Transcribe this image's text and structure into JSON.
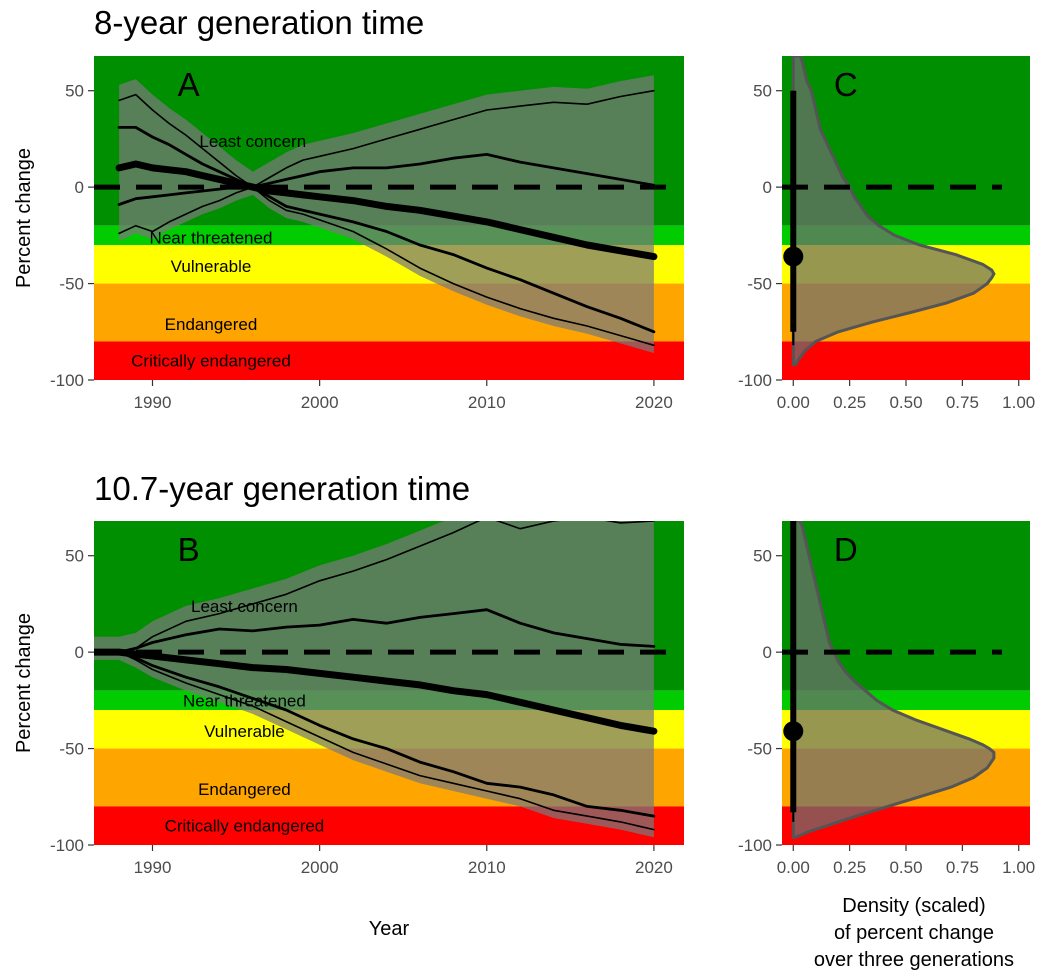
{
  "colors": {
    "least_concern": "#008f00",
    "near_threatened": "#00cc00",
    "vulnerable": "#ffff00",
    "endangered": "#ffa500",
    "critically_endangered": "#ff0000",
    "trajectories": "#7a7a7a",
    "density_fill": "#6f6f6f"
  },
  "chart_data": [
    {
      "panel": "A",
      "type": "line",
      "title": "8-year generation time",
      "xlabel": "",
      "ylabel": "Percent change",
      "xlim": [
        1986.5,
        2021.8
      ],
      "ylim": [
        -100,
        68
      ],
      "x_ticks": [
        1990,
        2000,
        2010,
        2020
      ],
      "y_ticks": [
        -100,
        -50,
        0,
        50
      ],
      "bands": [
        {
          "label": "Least concern",
          "from": -20,
          "to": 68,
          "color_key": "least_concern",
          "label_x": 1996,
          "label_y": 24
        },
        {
          "label": "Near threatened",
          "from": -30,
          "to": -20,
          "color_key": "near_threatened",
          "label_x": 1993.5,
          "label_y": -26
        },
        {
          "label": "Vulnerable",
          "from": -50,
          "to": -30,
          "color_key": "vulnerable",
          "label_x": 1993.5,
          "label_y": -41
        },
        {
          "label": "Endangered",
          "from": -80,
          "to": -50,
          "color_key": "endangered",
          "label_x": 1993.5,
          "label_y": -71
        },
        {
          "label": "Critically endangered",
          "from": -100,
          "to": -80,
          "color_key": "critically_endangered",
          "label_x": 1993.5,
          "label_y": -90
        }
      ],
      "reference_line": 0,
      "series": [
        {
          "role": "upper-outer",
          "width": 1.6,
          "x": [
            1988,
            1989,
            1990,
            1991,
            1992,
            1993,
            1994,
            1995,
            1996,
            1997,
            1998,
            1999,
            2000,
            2002,
            2004,
            2006,
            2008,
            2010,
            2012,
            2014,
            2016,
            2018,
            2020
          ],
          "y": [
            45,
            48,
            40,
            33,
            27,
            20,
            13,
            6,
            0,
            5,
            10,
            14,
            16,
            20,
            25,
            30,
            35,
            40,
            42,
            44,
            43,
            47,
            50
          ]
        },
        {
          "role": "upper-inner",
          "width": 2.8,
          "x": [
            1988,
            1989,
            1990,
            1991,
            1992,
            1993,
            1994,
            1995,
            1996,
            1997,
            1998,
            1999,
            2000,
            2002,
            2004,
            2006,
            2008,
            2010,
            2012,
            2014,
            2016,
            2018,
            2020
          ],
          "y": [
            31,
            31,
            26,
            22,
            17,
            12,
            8,
            4,
            0,
            2,
            4,
            6,
            8,
            10,
            10,
            12,
            15,
            17,
            13,
            10,
            7,
            4,
            1
          ]
        },
        {
          "role": "median",
          "width": 7,
          "x": [
            1988,
            1989,
            1990,
            1991,
            1992,
            1993,
            1994,
            1995,
            1996,
            1997,
            1998,
            1999,
            2000,
            2002,
            2004,
            2006,
            2008,
            2010,
            2012,
            2014,
            2016,
            2018,
            2020
          ],
          "y": [
            10,
            12,
            10,
            9,
            8,
            6,
            4,
            2,
            0,
            -2,
            -3,
            -4,
            -5,
            -7,
            -10,
            -12,
            -15,
            -18,
            -22,
            -26,
            -30,
            -33,
            -36
          ]
        },
        {
          "role": "lower-inner",
          "width": 2.8,
          "x": [
            1988,
            1989,
            1990,
            1991,
            1992,
            1993,
            1994,
            1995,
            1996,
            1997,
            1998,
            1999,
            2000,
            2002,
            2004,
            2006,
            2008,
            2010,
            2012,
            2014,
            2016,
            2018,
            2020
          ],
          "y": [
            -9,
            -6,
            -5,
            -4,
            -3,
            -2,
            -1,
            0,
            0,
            -5,
            -10,
            -12,
            -14,
            -18,
            -23,
            -30,
            -35,
            -42,
            -48,
            -55,
            -62,
            -68,
            -75
          ]
        },
        {
          "role": "lower-outer",
          "width": 1.6,
          "x": [
            1988,
            1989,
            1990,
            1991,
            1992,
            1993,
            1994,
            1995,
            1996,
            1997,
            1998,
            1999,
            2000,
            2002,
            2004,
            2006,
            2008,
            2010,
            2012,
            2014,
            2016,
            2018,
            2020
          ],
          "y": [
            -24,
            -20,
            -23,
            -18,
            -14,
            -10,
            -7,
            -3,
            0,
            -7,
            -12,
            -14,
            -17,
            -23,
            -32,
            -42,
            -50,
            -57,
            -63,
            -68,
            -72,
            -77,
            -82
          ]
        }
      ]
    },
    {
      "panel": "C",
      "type": "area",
      "title": "",
      "xlabel": "",
      "ylabel": "",
      "xlim": [
        -0.05,
        1.05
      ],
      "ylim": [
        -100,
        68
      ],
      "x_ticks": [
        0.0,
        0.25,
        0.5,
        0.75,
        1.0
      ],
      "x_tick_labels": [
        "0.00",
        "0.25",
        "0.50",
        "0.75",
        "1.00"
      ],
      "y_ticks": [
        -100,
        -50,
        0,
        50
      ],
      "reference_line": 0,
      "density": {
        "y": [
          -92,
          -90,
          -85,
          -80,
          -75,
          -70,
          -65,
          -60,
          -55,
          -50,
          -47,
          -45,
          -43,
          -40,
          -35,
          -30,
          -25,
          -20,
          -15,
          -10,
          -5,
          0,
          5,
          10,
          15,
          20,
          25,
          30,
          35,
          40,
          45,
          50,
          55,
          60,
          65,
          68
        ],
        "x": [
          0.01,
          0.02,
          0.05,
          0.1,
          0.2,
          0.35,
          0.52,
          0.68,
          0.8,
          0.86,
          0.88,
          0.89,
          0.88,
          0.84,
          0.72,
          0.56,
          0.45,
          0.38,
          0.33,
          0.3,
          0.27,
          0.25,
          0.22,
          0.2,
          0.18,
          0.16,
          0.14,
          0.12,
          0.11,
          0.1,
          0.09,
          0.08,
          0.06,
          0.05,
          0.04,
          0.03
        ]
      },
      "point": {
        "x": 0.0,
        "y": -36
      },
      "interval_thick": [
        -75,
        50
      ],
      "interval_thin": [
        -82,
        50
      ],
      "label": "C"
    },
    {
      "panel": "B",
      "type": "line",
      "title": "10.7-year generation time",
      "xlabel": "Year",
      "ylabel": "Percent change",
      "xlim": [
        1986.5,
        2021.8
      ],
      "ylim": [
        -100,
        68
      ],
      "x_ticks": [
        1990,
        2000,
        2010,
        2020
      ],
      "y_ticks": [
        -100,
        -50,
        0,
        50
      ],
      "bands": [
        {
          "label": "Least concern",
          "from": -20,
          "to": 68,
          "color_key": "least_concern",
          "label_x": 1995.5,
          "label_y": 24
        },
        {
          "label": "Near threatened",
          "from": -30,
          "to": -20,
          "color_key": "near_threatened",
          "label_x": 1995.5,
          "label_y": -25
        },
        {
          "label": "Vulnerable",
          "from": -50,
          "to": -30,
          "color_key": "vulnerable",
          "label_x": 1995.5,
          "label_y": -41
        },
        {
          "label": "Endangered",
          "from": -80,
          "to": -50,
          "color_key": "endangered",
          "label_x": 1995.5,
          "label_y": -71
        },
        {
          "label": "Critically endangered",
          "from": -100,
          "to": -80,
          "color_key": "critically_endangered",
          "label_x": 1995.5,
          "label_y": -90
        }
      ],
      "reference_line": 0,
      "series": [
        {
          "role": "upper-outer",
          "width": 1.6,
          "x": [
            1986.5,
            1988,
            1989,
            1990,
            1992,
            1994,
            1996,
            1998,
            2000,
            2002,
            2004,
            2006,
            2008,
            2010,
            2012,
            2014,
            2016,
            2018,
            2020
          ],
          "y": [
            0,
            0,
            2,
            8,
            16,
            20,
            25,
            30,
            37,
            42,
            48,
            55,
            62,
            70,
            64,
            68,
            70,
            67,
            68
          ]
        },
        {
          "role": "upper-inner",
          "width": 2.8,
          "x": [
            1986.5,
            1988,
            1989,
            1990,
            1992,
            1994,
            1996,
            1998,
            2000,
            2002,
            2004,
            2006,
            2008,
            2010,
            2012,
            2014,
            2016,
            2018,
            2020
          ],
          "y": [
            0,
            0,
            2,
            5,
            9,
            12,
            11,
            13,
            14,
            17,
            15,
            18,
            20,
            22,
            15,
            10,
            7,
            4,
            3
          ]
        },
        {
          "role": "median",
          "width": 7,
          "x": [
            1986.5,
            1988,
            1989,
            1990,
            1992,
            1994,
            1996,
            1998,
            2000,
            2002,
            2004,
            2006,
            2008,
            2010,
            2012,
            2014,
            2016,
            2018,
            2020
          ],
          "y": [
            0,
            0,
            -1,
            -2,
            -4,
            -6,
            -8,
            -9,
            -11,
            -13,
            -15,
            -17,
            -20,
            -22,
            -26,
            -30,
            -34,
            -38,
            -41
          ]
        },
        {
          "role": "lower-inner",
          "width": 2.8,
          "x": [
            1986.5,
            1988,
            1989,
            1990,
            1992,
            1994,
            1996,
            1998,
            2000,
            2002,
            2004,
            2006,
            2008,
            2010,
            2012,
            2014,
            2016,
            2018,
            2020
          ],
          "y": [
            0,
            0,
            -3,
            -7,
            -13,
            -18,
            -24,
            -30,
            -38,
            -45,
            -50,
            -57,
            -62,
            -68,
            -70,
            -74,
            -80,
            -82,
            -85
          ]
        },
        {
          "role": "lower-outer",
          "width": 1.6,
          "x": [
            1986.5,
            1988,
            1989,
            1990,
            1992,
            1994,
            1996,
            1998,
            2000,
            2002,
            2004,
            2006,
            2008,
            2010,
            2012,
            2014,
            2016,
            2018,
            2020
          ],
          "y": [
            0,
            0,
            -4,
            -9,
            -16,
            -22,
            -28,
            -36,
            -44,
            -52,
            -58,
            -64,
            -68,
            -72,
            -76,
            -82,
            -85,
            -88,
            -92
          ]
        }
      ]
    },
    {
      "panel": "D",
      "type": "area",
      "title": "",
      "xlabel": "Density (scaled)\nof percent change\nover three generations",
      "xlabel_lines": [
        "Density (scaled)",
        "of percent change",
        "over three generations"
      ],
      "ylabel": "",
      "xlim": [
        -0.05,
        1.05
      ],
      "ylim": [
        -100,
        68
      ],
      "x_ticks": [
        0.0,
        0.25,
        0.5,
        0.75,
        1.0
      ],
      "x_tick_labels": [
        "0.00",
        "0.25",
        "0.50",
        "0.75",
        "1.00"
      ],
      "y_ticks": [
        -100,
        -50,
        0,
        50
      ],
      "reference_line": 0,
      "density": {
        "y": [
          -96,
          -95,
          -93,
          -90,
          -85,
          -80,
          -75,
          -70,
          -65,
          -60,
          -55,
          -52,
          -50,
          -48,
          -45,
          -40,
          -35,
          -30,
          -25,
          -20,
          -15,
          -10,
          -5,
          0,
          5,
          10,
          15,
          20,
          25,
          30,
          35,
          40,
          45,
          50,
          55,
          60,
          65,
          68
        ],
        "x": [
          0.01,
          0.03,
          0.07,
          0.15,
          0.28,
          0.42,
          0.56,
          0.7,
          0.8,
          0.86,
          0.89,
          0.89,
          0.87,
          0.84,
          0.78,
          0.66,
          0.54,
          0.44,
          0.37,
          0.32,
          0.27,
          0.23,
          0.2,
          0.18,
          0.16,
          0.15,
          0.14,
          0.13,
          0.12,
          0.11,
          0.1,
          0.09,
          0.08,
          0.07,
          0.06,
          0.05,
          0.04,
          0.03
        ]
      },
      "point": {
        "x": 0.0,
        "y": -41
      },
      "interval_thick": [
        -83,
        68
      ],
      "interval_thin": [
        -88,
        68
      ],
      "label": "D"
    }
  ]
}
